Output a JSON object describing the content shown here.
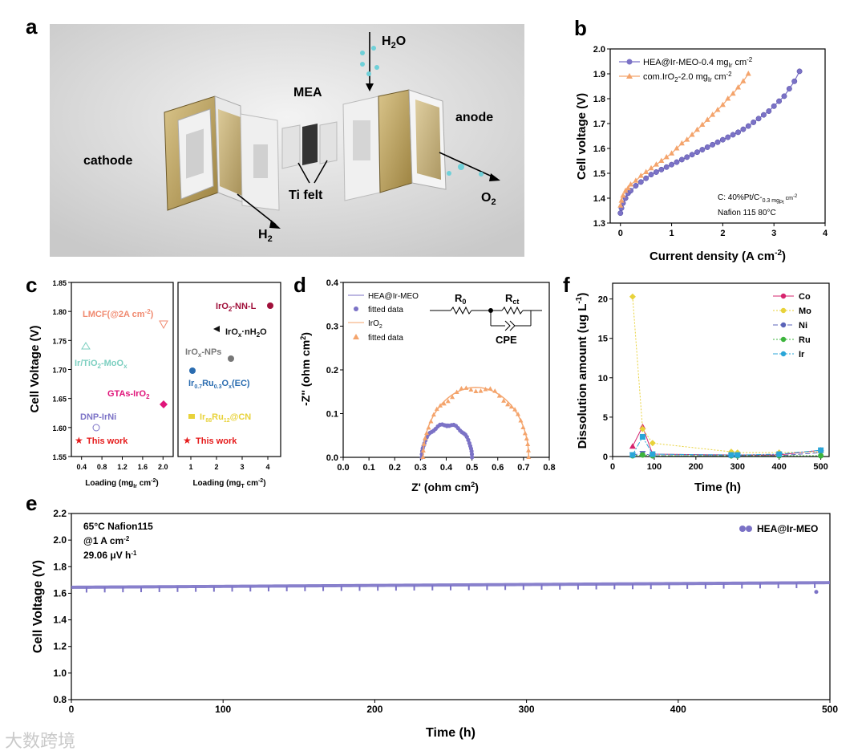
{
  "panels": {
    "a": "a",
    "b": "b",
    "c": "c",
    "d": "d",
    "e": "e",
    "f": "f"
  },
  "panel_a": {
    "labels": {
      "cathode": "cathode",
      "anode": "anode",
      "mea": "MEA",
      "ti_felt": "Ti felt",
      "h2o": "H",
      "h2o_sub": "2",
      "h2o_end": "O",
      "o2": "O",
      "o2_sub": "2",
      "h2": "H",
      "h2_sub": "2"
    }
  },
  "panel_b": {
    "ylabel": "Cell voltage (V)",
    "xlabel": "Current density (A cm",
    "xlabel_sup": "-2",
    "xlabel_end": ")",
    "legend": [
      {
        "text": "HEA@Ir-MEO-0.4 mg",
        "sub": "Ir",
        "tail": " cm",
        "sup": "-2",
        "color": "#7b72c6"
      },
      {
        "text": "com.IrO",
        "sub": "2",
        "tail": "-2.0 mg",
        "sub2": "Ir",
        "tail2": " cm",
        "sup": "-2",
        "color": "#f4a46c"
      }
    ],
    "note1": "C: 40%Pt/C-",
    "note1_sub": "0.3 mg",
    "note1_sub2": "Pt",
    "note1_sup": " cm",
    "note1_sup2": "-2",
    "note2": "Nafion 115 80°C",
    "xticks": [
      "0",
      "1",
      "2",
      "3",
      "4"
    ],
    "yticks": [
      "1.3",
      "1.4",
      "1.5",
      "1.6",
      "1.7",
      "1.8",
      "1.9",
      "2.0"
    ]
  },
  "panel_c": {
    "ylabel": "Cell Voltage (V)",
    "xlabel_left": "Loading (mg",
    "xlabel_left_sub": "Ir",
    "xlabel_left_tail": " cm",
    "xlabel_left_sup": "-2",
    "xlabel_left_end": ")",
    "xlabel_right": "Loading (mg",
    "xlabel_right_sub": "T",
    "xlabel_right_tail": " cm",
    "xlabel_right_sup": "-2",
    "xlabel_right_end": ")",
    "yticks": [
      "1.55",
      "1.60",
      "1.65",
      "1.70",
      "1.75",
      "1.80",
      "1.85"
    ],
    "xticks_left": [
      "0.4",
      "0.8",
      "1.2",
      "1.6",
      "2.0"
    ],
    "xticks_right": [
      "1",
      "2",
      "3",
      "4"
    ],
    "left_points": [
      {
        "label": "LMCF(@2A cm",
        "sup": "-2",
        "end": ")",
        "color": "#f08a70"
      },
      {
        "label": "Ir/TiO",
        "sub": "2",
        "end": "-MoO",
        "sub2": "x",
        "color": "#7ccfc0"
      },
      {
        "label": "GTAs-IrO",
        "sub": "2",
        "color": "#e0157a"
      },
      {
        "label": "DNP-IrNi",
        "color": "#7b72c6"
      },
      {
        "label": "This work",
        "color": "#e51a1a"
      }
    ],
    "right_points": [
      {
        "label": "IrO",
        "sub": "2",
        "end": "-NN-L",
        "color": "#a0103a"
      },
      {
        "label": "IrO",
        "sub": "x",
        "end": "·nH",
        "sub2": "2",
        "end2": "O",
        "color": "#111111"
      },
      {
        "label": "IrO",
        "sub": "x",
        "end": "-NPs",
        "color": "#777777"
      },
      {
        "label": "Ir",
        "sub": "0.7",
        "end": "Ru",
        "sub2": "0.3",
        "end2": "O",
        "sub3": "x",
        "end3": "(EC)",
        "color": "#2a6cb0"
      },
      {
        "label": "Ir",
        "sub": "88",
        "end": "Ru",
        "sub2": "12",
        "end2": "@CN",
        "color": "#e8d23a"
      },
      {
        "label": "This work",
        "color": "#e51a1a"
      }
    ]
  },
  "panel_d": {
    "ylabel": "-Z'' (ohm cm",
    "ylabel_sup": "2",
    "ylabel_end": ")",
    "xlabel": "Z' (ohm cm",
    "xlabel_sup": "2",
    "xlabel_end": ")",
    "legend": [
      "HEA@Ir-MEO",
      "fitted data",
      "IrO",
      "fitted data"
    ],
    "legend_sub": "2",
    "circuit": {
      "r0": "R",
      "r0_sub": "0",
      "rct": "R",
      "rct_sub": "ct",
      "cpe": "CPE"
    },
    "xticks": [
      "0.0",
      "0.1",
      "0.2",
      "0.3",
      "0.4",
      "0.5",
      "0.6",
      "0.7",
      "0.8"
    ],
    "yticks": [
      "0.0",
      "0.1",
      "0.2",
      "0.3",
      "0.4"
    ]
  },
  "panel_e": {
    "ylabel": "Cell Voltage (V)",
    "xlabel": "Time (h)",
    "note1": "65°C Nafion115",
    "note2": "@1 A cm",
    "note2_sup": "-2",
    "note3": "29.06 μV h",
    "note3_sup": "-1",
    "legend": "HEA@Ir-MEO",
    "xticks": [
      "0",
      "100",
      "200",
      "300",
      "400",
      "500"
    ],
    "yticks": [
      "0.8",
      "1.0",
      "1.2",
      "1.4",
      "1.6",
      "1.8",
      "2.0",
      "2.2"
    ]
  },
  "panel_f": {
    "ylabel": "Dissolution amount (ug L",
    "ylabel_sup": "-1",
    "ylabel_end": ")",
    "xlabel": "Time (h)",
    "xticks": [
      "0",
      "100",
      "200",
      "300",
      "400",
      "500"
    ],
    "yticks": [
      "0",
      "5",
      "10",
      "15",
      "20"
    ],
    "legend": [
      {
        "name": "Co",
        "color": "#d6246e"
      },
      {
        "name": "Mo",
        "color": "#e8d23a"
      },
      {
        "name": "Ni",
        "color": "#5a63b8"
      },
      {
        "name": "Ru",
        "color": "#3cb43c"
      },
      {
        "name": "Ir",
        "color": "#2aa6d8"
      }
    ]
  },
  "watermark": "大数跨境",
  "chart_data": [
    {
      "panel": "b",
      "type": "line",
      "xlabel": "Current density (A cm-2)",
      "ylabel": "Cell voltage (V)",
      "xlim": [
        -0.2,
        4
      ],
      "ylim": [
        1.3,
        2.0
      ],
      "series": [
        {
          "name": "HEA@Ir-MEO-0.4 mgIr cm-2",
          "color": "#7b72c6",
          "x": [
            0,
            0.02,
            0.05,
            0.1,
            0.15,
            0.2,
            0.3,
            0.4,
            0.5,
            0.6,
            0.7,
            0.8,
            0.9,
            1.0,
            1.1,
            1.2,
            1.3,
            1.4,
            1.5,
            1.6,
            1.7,
            1.8,
            1.9,
            2.0,
            2.1,
            2.2,
            2.3,
            2.4,
            2.5,
            2.6,
            2.7,
            2.8,
            2.9,
            3.0,
            3.1,
            3.2,
            3.3,
            3.4,
            3.5
          ],
          "y": [
            1.34,
            1.36,
            1.38,
            1.4,
            1.42,
            1.43,
            1.45,
            1.465,
            1.48,
            1.495,
            1.505,
            1.515,
            1.525,
            1.535,
            1.545,
            1.555,
            1.565,
            1.575,
            1.585,
            1.595,
            1.605,
            1.615,
            1.625,
            1.635,
            1.645,
            1.655,
            1.665,
            1.677,
            1.69,
            1.705,
            1.72,
            1.735,
            1.75,
            1.77,
            1.79,
            1.81,
            1.84,
            1.87,
            1.91
          ]
        },
        {
          "name": "com.IrO2-2.0 mgIr cm-2",
          "color": "#f4a46c",
          "x": [
            0,
            0.02,
            0.05,
            0.1,
            0.15,
            0.2,
            0.3,
            0.4,
            0.5,
            0.6,
            0.7,
            0.8,
            0.9,
            1.0,
            1.1,
            1.2,
            1.3,
            1.4,
            1.5,
            1.6,
            1.7,
            1.8,
            1.9,
            2.0,
            2.1,
            2.2,
            2.3,
            2.4,
            2.5
          ],
          "y": [
            1.37,
            1.39,
            1.41,
            1.43,
            1.44,
            1.455,
            1.47,
            1.49,
            1.505,
            1.52,
            1.535,
            1.55,
            1.565,
            1.58,
            1.6,
            1.62,
            1.635,
            1.655,
            1.675,
            1.695,
            1.715,
            1.735,
            1.755,
            1.775,
            1.8,
            1.82,
            1.845,
            1.87,
            1.9
          ]
        }
      ]
    },
    {
      "panel": "c",
      "type": "scatter",
      "ylabel": "Cell Voltage (V)",
      "ylim": [
        1.55,
        1.85
      ],
      "left": {
        "xlabel": "Loading (mgIr cm-2)",
        "xlim": [
          0.2,
          2.2
        ],
        "points": [
          {
            "label": "LMCF(@2A cm-2)",
            "x": 2.0,
            "y": 1.78
          },
          {
            "label": "Ir/TiO2-MoOx",
            "x": 0.5,
            "y": 1.74
          },
          {
            "label": "GTAs-IrO2",
            "x": 2.0,
            "y": 1.64
          },
          {
            "label": "DNP-IrNi",
            "x": 0.75,
            "y": 1.6
          },
          {
            "label": "This work",
            "x": 0.4,
            "y": 1.58
          }
        ]
      },
      "right": {
        "xlabel": "Loading (mgT cm-2)",
        "xlim": [
          0.5,
          4.5
        ],
        "points": [
          {
            "label": "IrO2-NN-L",
            "x": 4.0,
            "y": 1.805
          },
          {
            "label": "IrOx·nH2O",
            "x": 2.0,
            "y": 1.77
          },
          {
            "label": "IrOx-NPs",
            "x": 2.5,
            "y": 1.72
          },
          {
            "label": "Ir0.7Ru0.3Ox(EC)",
            "x": 1.0,
            "y": 1.7
          },
          {
            "label": "Ir88Ru12@CN",
            "x": 1.0,
            "y": 1.61
          },
          {
            "label": "This work",
            "x": 0.75,
            "y": 1.58
          }
        ]
      }
    },
    {
      "panel": "d",
      "type": "scatter",
      "xlabel": "Z' (ohm cm2)",
      "ylabel": "-Z'' (ohm cm2)",
      "xlim": [
        0,
        0.8
      ],
      "ylim": [
        0,
        0.4
      ],
      "series": [
        {
          "name": "HEA@Ir-MEO",
          "r0": 0.305,
          "rct": 0.195,
          "color": "#7b72c6"
        },
        {
          "name": "IrO2",
          "r0": 0.31,
          "rct": 0.41,
          "color": "#f4a46c"
        }
      ]
    },
    {
      "panel": "e",
      "type": "line",
      "xlabel": "Time (h)",
      "ylabel": "Cell Voltage (V)",
      "xlim": [
        0,
        500
      ],
      "ylim": [
        0.8,
        2.2
      ],
      "series": [
        {
          "name": "HEA@Ir-MEO",
          "start": 1.645,
          "end": 1.68,
          "color": "#7b72c6"
        }
      ]
    },
    {
      "panel": "f",
      "type": "line",
      "xlabel": "Time (h)",
      "ylabel": "Dissolution amount (ug L-1)",
      "xlim": [
        0,
        520
      ],
      "ylim": [
        0,
        22
      ],
      "x": [
        48,
        72,
        96,
        285,
        300,
        400,
        500
      ],
      "series": [
        {
          "name": "Co",
          "values": [
            1.3,
            3.8,
            0.3,
            0.2,
            0.2,
            0.2,
            0.8
          ]
        },
        {
          "name": "Mo",
          "values": [
            20.3,
            3.5,
            1.7,
            0.6,
            0.5,
            0.5,
            0.6
          ]
        },
        {
          "name": "Ni",
          "values": [
            0.2,
            0.4,
            0.1,
            0.1,
            0.1,
            0.1,
            0.5
          ]
        },
        {
          "name": "Ru",
          "values": [
            0.1,
            0.2,
            0.1,
            0.1,
            0.1,
            0.1,
            0.1
          ]
        },
        {
          "name": "Ir",
          "values": [
            0.2,
            2.5,
            0.3,
            0.2,
            0.2,
            0.3,
            0.8
          ]
        }
      ]
    }
  ]
}
